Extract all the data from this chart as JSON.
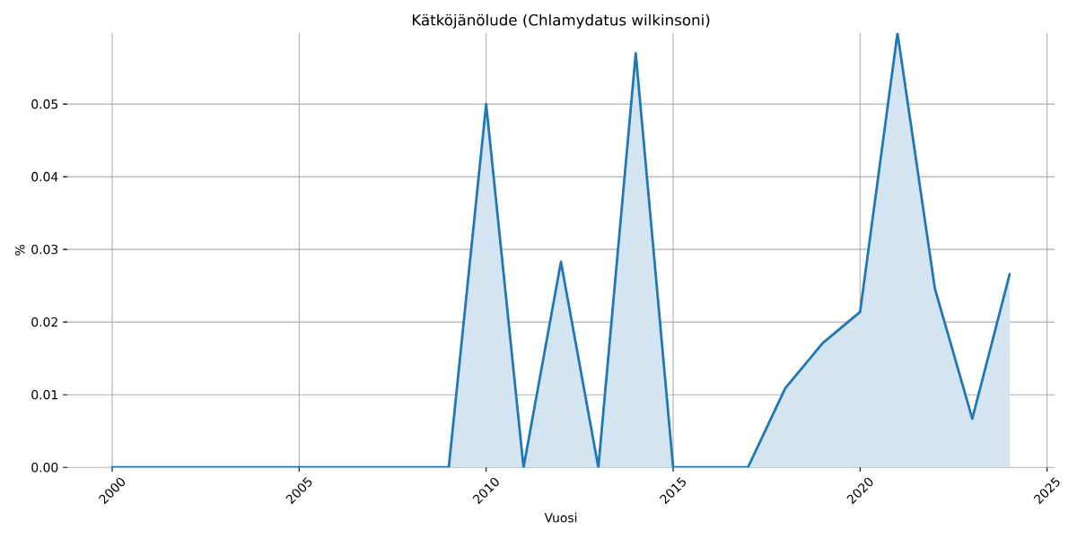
{
  "chart_data": {
    "type": "area",
    "title": "Kätköjänölude (Chlamydatus wilkinsoni)",
    "xlabel": "Vuosi",
    "ylabel": "%",
    "x": [
      2000,
      2001,
      2002,
      2003,
      2004,
      2005,
      2006,
      2007,
      2008,
      2009,
      2010,
      2011,
      2012,
      2013,
      2014,
      2015,
      2016,
      2017,
      2018,
      2019,
      2020,
      2021,
      2022,
      2023,
      2024
    ],
    "values": [
      0,
      0,
      0,
      0,
      0,
      0,
      0,
      0,
      0,
      0,
      0.05,
      0,
      0.0283,
      0,
      0.057,
      0,
      0,
      0,
      0.0109,
      0.0171,
      0.0214,
      0.0598,
      0.0246,
      0.0067,
      0.0266
    ],
    "color": "#1f77b4",
    "xlim": [
      1998.8,
      2025.2
    ],
    "ylim": [
      0,
      0.0598
    ],
    "xticks": [
      2000,
      2005,
      2010,
      2015,
      2020,
      2025
    ],
    "yticks": [
      {
        "value": 0,
        "label": "0.00"
      },
      0.01,
      0.02,
      0.03,
      0.04,
      0.05
    ],
    "grid": true
  }
}
